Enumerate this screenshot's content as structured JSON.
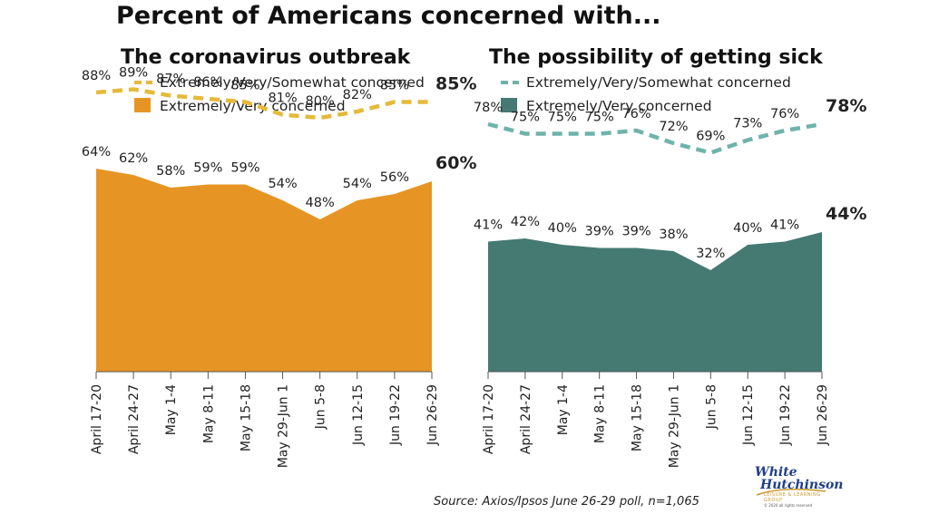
{
  "title": "Percent of Americans concerned with...",
  "source": "Source: Axios/Ipsos June 26-29 poll, n=1,065",
  "logo": {
    "line1": "White",
    "line2": "Hutchinson",
    "line3": "LEISURE & LEARNING GROUP",
    "line4": "© 2020 all rights reserved"
  },
  "chart_data": [
    {
      "type": "area",
      "title": "The coronavirus outbreak",
      "categories": [
        "April 17-20",
        "April 24-27",
        "May 1-4",
        "May 8-11",
        "May 15-18",
        "May 29-Jun 1",
        "Jun 5-8",
        "Jun 12-15",
        "Jun 19-22",
        "Jun 26-29"
      ],
      "ylim": [
        0,
        100
      ],
      "legend_position": "top",
      "grid": false,
      "color_line": "#E6B93A",
      "color_area": "#E69524",
      "series": [
        {
          "name": "Extremely/Very/Somewhat concerned",
          "style": "dashed-line",
          "values": [
            88,
            89,
            87,
            86,
            85,
            81,
            80,
            82,
            85,
            85
          ]
        },
        {
          "name": "Extremely/Very concerned",
          "style": "area",
          "values": [
            64,
            62,
            58,
            59,
            59,
            54,
            48,
            54,
            56,
            60
          ]
        }
      ]
    },
    {
      "type": "area",
      "title": "The possibility of getting sick",
      "categories": [
        "April 17-20",
        "April 24-27",
        "May 1-4",
        "May 8-11",
        "May 15-18",
        "May 29-Jun 1",
        "Jun 5-8",
        "Jun 12-15",
        "Jun 19-22",
        "Jun 26-29"
      ],
      "ylim": [
        0,
        100
      ],
      "legend_position": "top",
      "grid": false,
      "color_line": "#6FB3AA",
      "color_area": "#457A73",
      "series": [
        {
          "name": "Extremely/Very/Somewhat concerned",
          "style": "dashed-line",
          "values": [
            78,
            75,
            75,
            75,
            76,
            72,
            69,
            73,
            76,
            78
          ]
        },
        {
          "name": "Extremely/Very concerned",
          "style": "area",
          "values": [
            41,
            42,
            40,
            39,
            39,
            38,
            32,
            40,
            41,
            44
          ]
        }
      ]
    }
  ]
}
